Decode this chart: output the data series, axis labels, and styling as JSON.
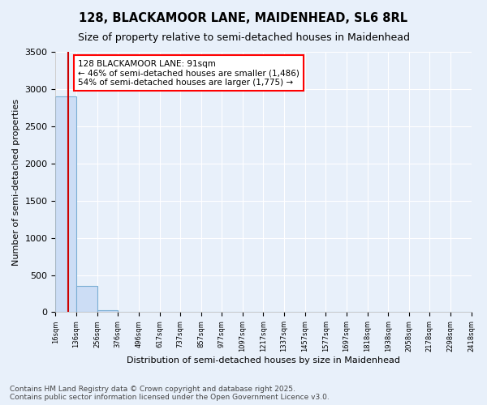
{
  "title": "128, BLACKAMOOR LANE, MAIDENHEAD, SL6 8RL",
  "subtitle": "Size of property relative to semi-detached houses in Maidenhead",
  "xlabel": "Distribution of semi-detached houses by size in Maidenhead",
  "ylabel": "Number of semi-detached properties",
  "bar_edges": [
    16,
    136,
    256,
    376,
    496,
    617,
    737,
    857,
    977,
    1097,
    1217,
    1337,
    1457,
    1577,
    1697,
    1818,
    1938,
    2058,
    2178,
    2298,
    2418
  ],
  "bar_heights": [
    2900,
    355,
    30,
    3,
    1,
    0,
    0,
    0,
    0,
    0,
    0,
    0,
    0,
    0,
    0,
    0,
    0,
    0,
    0,
    0
  ],
  "bar_color": "#ccddf5",
  "bar_edge_color": "#7aaed4",
  "property_size": 91,
  "property_line_color": "#cc0000",
  "annotation_text": "128 BLACKAMOOR LANE: 91sqm\n← 46% of semi-detached houses are smaller (1,486)\n54% of semi-detached houses are larger (1,775) →",
  "ylim": [
    0,
    3500
  ],
  "yticks": [
    0,
    500,
    1000,
    1500,
    2000,
    2500,
    3000,
    3500
  ],
  "background_color": "#e8f0fa",
  "plot_bg_color": "#e8f0fa",
  "grid_color": "#ffffff",
  "footer_text": "Contains HM Land Registry data © Crown copyright and database right 2025.\nContains public sector information licensed under the Open Government Licence v3.0.",
  "title_fontsize": 10.5,
  "subtitle_fontsize": 9,
  "annotation_fontsize": 7.5,
  "footer_fontsize": 6.5
}
